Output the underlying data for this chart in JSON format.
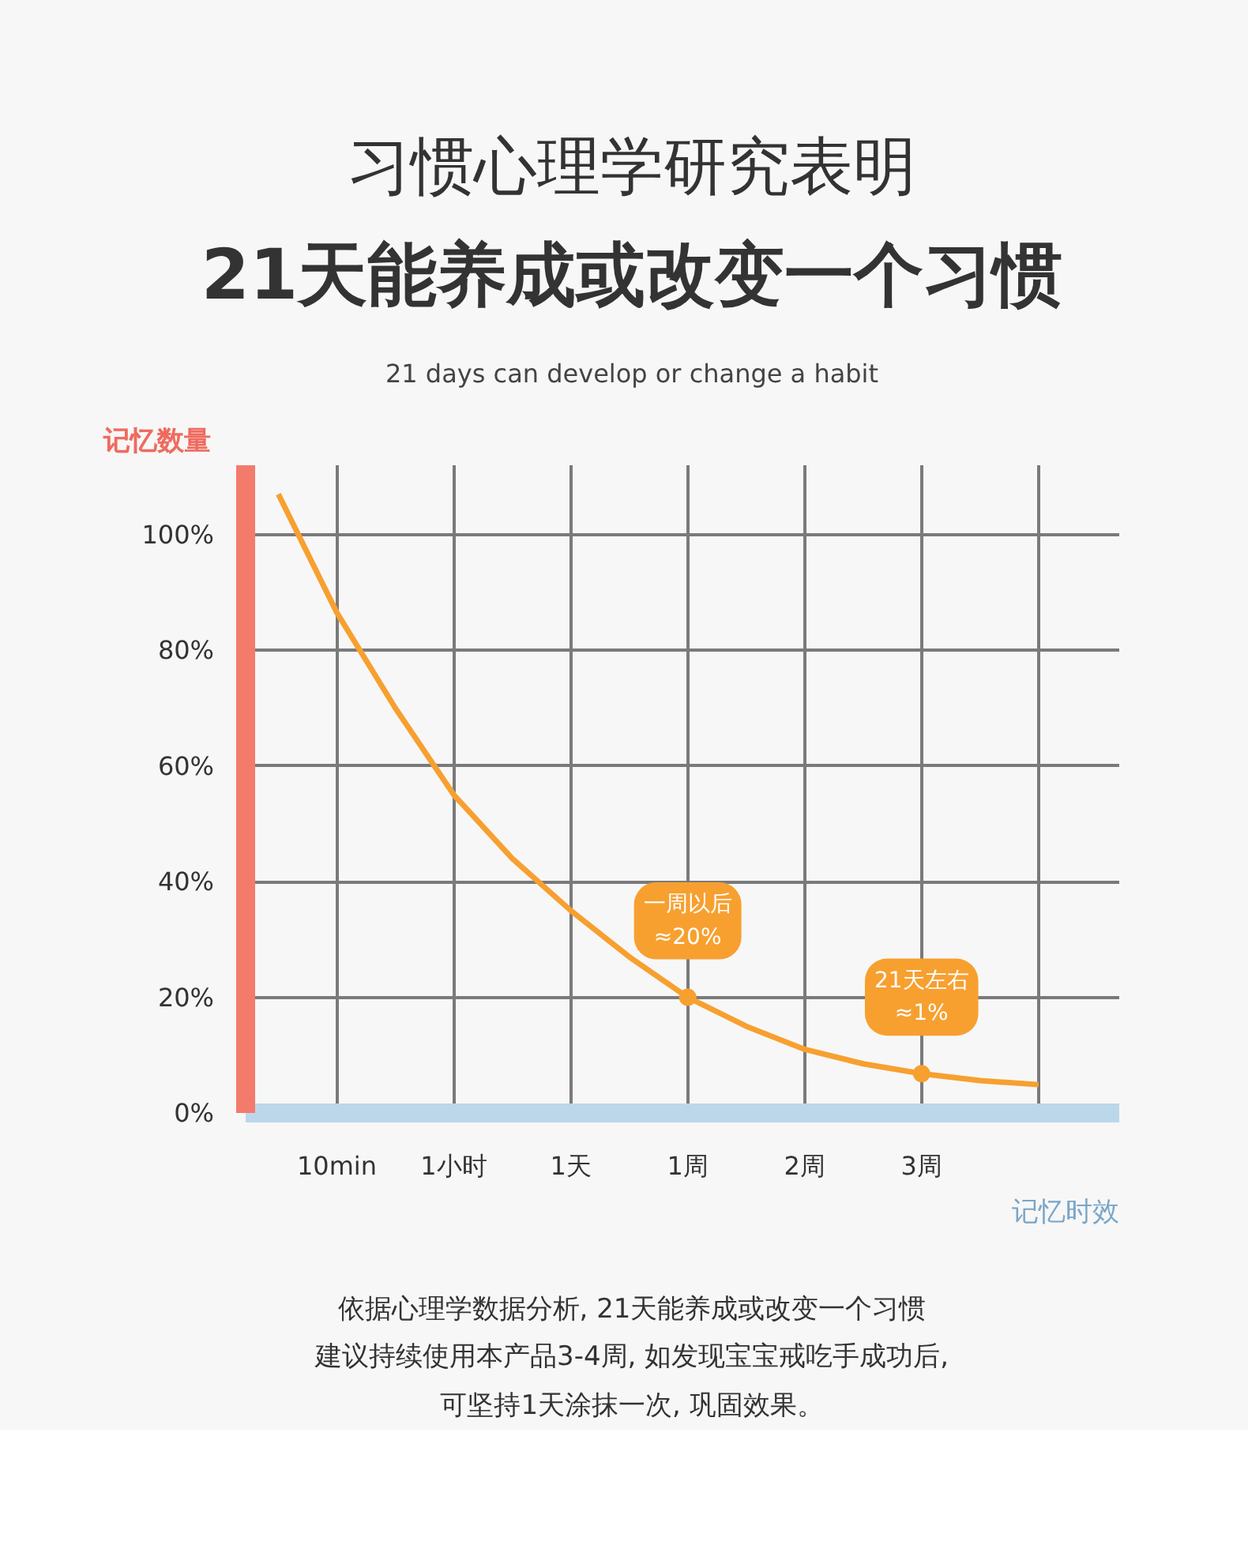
{
  "chart_data": {
    "type": "line",
    "title": "习惯心理学研究表明",
    "subtitle": "21天能养成或改变一个习惯",
    "ylabel": "记忆数量",
    "xlabel": "记忆时效",
    "categories": [
      null,
      "10min",
      null,
      "1小时",
      null,
      "1天",
      null,
      "1周",
      null,
      "2周",
      null,
      "3周",
      null,
      null
    ],
    "series": [
      {
        "color": "#f7a030",
        "values": [
          107,
          86.5,
          70,
          55,
          44,
          35,
          27,
          20,
          15,
          11,
          8.5,
          6.8,
          5.6,
          4.9
        ]
      }
    ],
    "ylim": [
      0,
      112
    ],
    "yticks": [
      {
        "value": 0,
        "label": "0%"
      },
      {
        "value": 20,
        "label": "20%"
      },
      {
        "value": 40,
        "label": "40%"
      },
      {
        "value": 60,
        "label": "60%"
      },
      {
        "value": 80,
        "label": "80%"
      },
      {
        "value": 100,
        "label": "100%"
      }
    ],
    "grid": true,
    "marker": "none",
    "line_style": "solid",
    "annotations": [
      "21 days can develop or change a habit",
      {
        "text": "一周以后\n≈20%",
        "x": "1周",
        "y": 20
      },
      {
        "text": "21天左右\n≈1%",
        "x": "3周",
        "y": 6.8
      },
      "依据心理学数据分析, 21天能养成或改变一个习惯",
      "建议持续使用本产品3-4周, 如发现宝宝戒吃手成功后,",
      "可坚持1天涂抹一次, 巩固效果。"
    ]
  }
}
